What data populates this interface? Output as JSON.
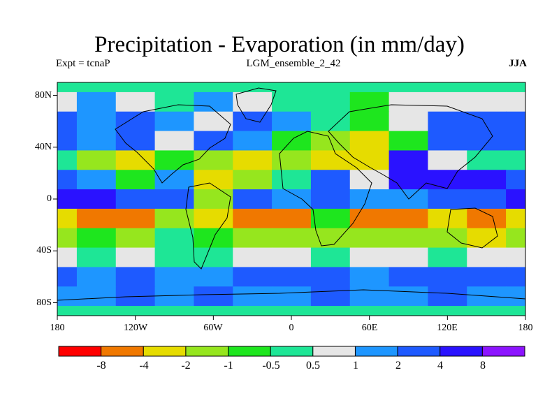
{
  "header": {
    "title": "Precipitation - Evaporation (in mm/day)",
    "left_label": "Expt = tcnaP",
    "center_label": "LGM_ensemble_2_42",
    "right_label": "JJA"
  },
  "map": {
    "lat_range": [
      -90,
      90
    ],
    "lon_range": [
      -180,
      180
    ],
    "y_ticks": [
      "80N",
      "40N",
      "0",
      "40S",
      "80S"
    ],
    "y_tick_values": [
      80,
      40,
      0,
      -40,
      -80
    ],
    "x_ticks": [
      "180",
      "120W",
      "60W",
      "0",
      "60E",
      "120E",
      "180"
    ],
    "x_tick_values": [
      -180,
      -120,
      -60,
      0,
      60,
      120,
      180
    ]
  },
  "colorbar": {
    "colors": [
      "#ff0000",
      "#f07800",
      "#e6dc00",
      "#96e61e",
      "#1ee61e",
      "#1ee696",
      "#e6e6e6",
      "#1e96ff",
      "#1e5aff",
      "#2a12ff",
      "#8c14ff"
    ],
    "labels": [
      "-8",
      "-4",
      "-2",
      "-1",
      "-0.5",
      "0.5",
      "1",
      "2",
      "4",
      "8"
    ]
  },
  "chart_data": {
    "type": "heatmap",
    "variable": "P-E",
    "units": "mm/day",
    "levels": [
      -8,
      -4,
      -2,
      -1,
      -0.5,
      0.5,
      1,
      2,
      4,
      8
    ],
    "lon": [
      -180,
      -150,
      -120,
      -90,
      -60,
      -30,
      0,
      30,
      60,
      90,
      120,
      150,
      180
    ],
    "lat": [
      90,
      75,
      60,
      45,
      30,
      15,
      0,
      -15,
      -30,
      -45,
      -60,
      -75,
      -90
    ],
    "values": [
      [
        0.3,
        0.3,
        0.3,
        0.3,
        0.3,
        0.3,
        0.3,
        0.3,
        0.3,
        0.3,
        0.3,
        0.3,
        0.3
      ],
      [
        0.6,
        1.5,
        0.6,
        0.3,
        1.5,
        0.8,
        0.3,
        0.3,
        -0.7,
        0.6,
        0.6,
        0.8,
        0.6
      ],
      [
        2.5,
        1.5,
        2.5,
        1.5,
        0.8,
        2.5,
        1.5,
        0.3,
        -0.7,
        0.6,
        2.5,
        2.5,
        2.5
      ],
      [
        2.5,
        1.5,
        2.5,
        0.8,
        2.5,
        1.5,
        -0.7,
        -1.5,
        -3.0,
        -0.7,
        2.5,
        3.0,
        2.5
      ],
      [
        -0.3,
        -1.5,
        -3.0,
        -0.7,
        -1.5,
        -3.0,
        -1.5,
        -3.0,
        -3.0,
        4.5,
        0.8,
        0.3,
        -0.3
      ],
      [
        2.5,
        1.5,
        -0.7,
        1.5,
        -3.0,
        -1.5,
        -0.3,
        2.5,
        0.8,
        6.0,
        5.0,
        5.0,
        2.5
      ],
      [
        5.0,
        4.5,
        3.0,
        2.5,
        -1.5,
        3.0,
        1.5,
        2.5,
        1.5,
        1.5,
        2.5,
        2.5,
        5.0
      ],
      [
        -3.0,
        -5.0,
        -5.0,
        -1.5,
        -3.0,
        -5.0,
        -5.0,
        -0.7,
        -5.0,
        -5.0,
        -3.0,
        -5.0,
        -3.0
      ],
      [
        -1.5,
        -0.7,
        -1.5,
        -0.3,
        -0.7,
        -1.5,
        -1.5,
        -1.5,
        -1.5,
        -1.5,
        -1.5,
        -3.0,
        -1.5
      ],
      [
        0.8,
        0.3,
        0.6,
        0.3,
        0.3,
        0.6,
        0.8,
        0.3,
        0.6,
        0.6,
        0.3,
        0.6,
        0.8
      ],
      [
        2.5,
        1.5,
        2.5,
        1.5,
        1.5,
        2.5,
        3.0,
        2.5,
        1.5,
        2.5,
        3.0,
        2.5,
        2.5
      ],
      [
        1.5,
        1.5,
        2.5,
        1.5,
        2.5,
        1.5,
        1.5,
        2.5,
        1.5,
        1.5,
        2.5,
        1.5,
        1.5
      ],
      [
        0.3,
        0.3,
        0.3,
        0.3,
        0.3,
        0.3,
        0.3,
        0.3,
        0.3,
        0.3,
        0.3,
        0.3,
        0.3
      ]
    ]
  }
}
